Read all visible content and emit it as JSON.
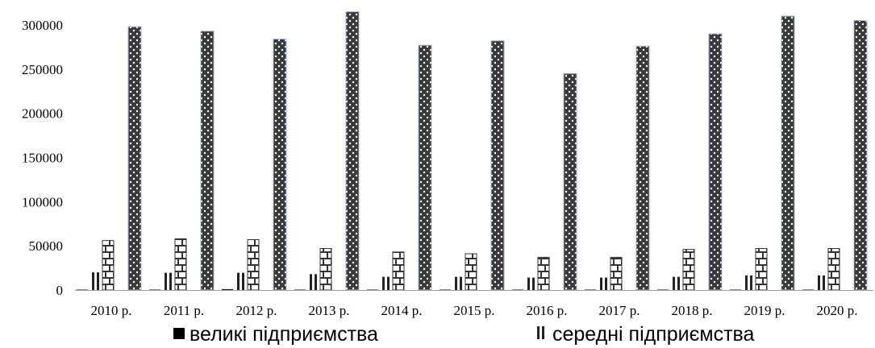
{
  "chart_data": {
    "type": "bar",
    "title": "",
    "xlabel": "",
    "ylabel": "",
    "ylim": [
      0,
      310000
    ],
    "y_ticks": [
      "0",
      "50000",
      "100000",
      "150000",
      "200000",
      "250000",
      "300000"
    ],
    "grid": false,
    "legend_position": "bottom",
    "categories": [
      "2010 р.",
      "2011 р.",
      "2012 р.",
      "2013 р.",
      "2014 р.",
      "2015 р.",
      "2016 р.",
      "2017 р.",
      "2018 р.",
      "2019 р.",
      "2020 р."
    ],
    "series": [
      {
        "name": "великі підприємства",
        "pattern": "solid",
        "color": "#1a1a1a",
        "values": [
          500,
          500,
          1000,
          500,
          500,
          500,
          500,
          500,
          500,
          500,
          500
        ]
      },
      {
        "name": "середні підприємства",
        "pattern": "vertical-stripes",
        "color": "#222222",
        "values": [
          20000,
          19500,
          19500,
          18000,
          15000,
          15000,
          14000,
          14000,
          15000,
          16500,
          16500
        ]
      },
      {
        "name": "",
        "pattern": "brick",
        "color": "#333333",
        "values": [
          56000,
          58000,
          57000,
          47000,
          43000,
          41000,
          37000,
          37000,
          46000,
          47000,
          47000
        ]
      },
      {
        "name": "",
        "pattern": "dots",
        "color": "#333333",
        "values": [
          298000,
          293000,
          284000,
          315000,
          277000,
          282000,
          245000,
          276000,
          290000,
          310000,
          305000
        ]
      }
    ]
  },
  "legend": {
    "items": [
      {
        "label": "великі підприємства",
        "swatch": "solid"
      },
      {
        "label": "середні підприємства",
        "swatch": "vertical-stripes"
      }
    ]
  }
}
